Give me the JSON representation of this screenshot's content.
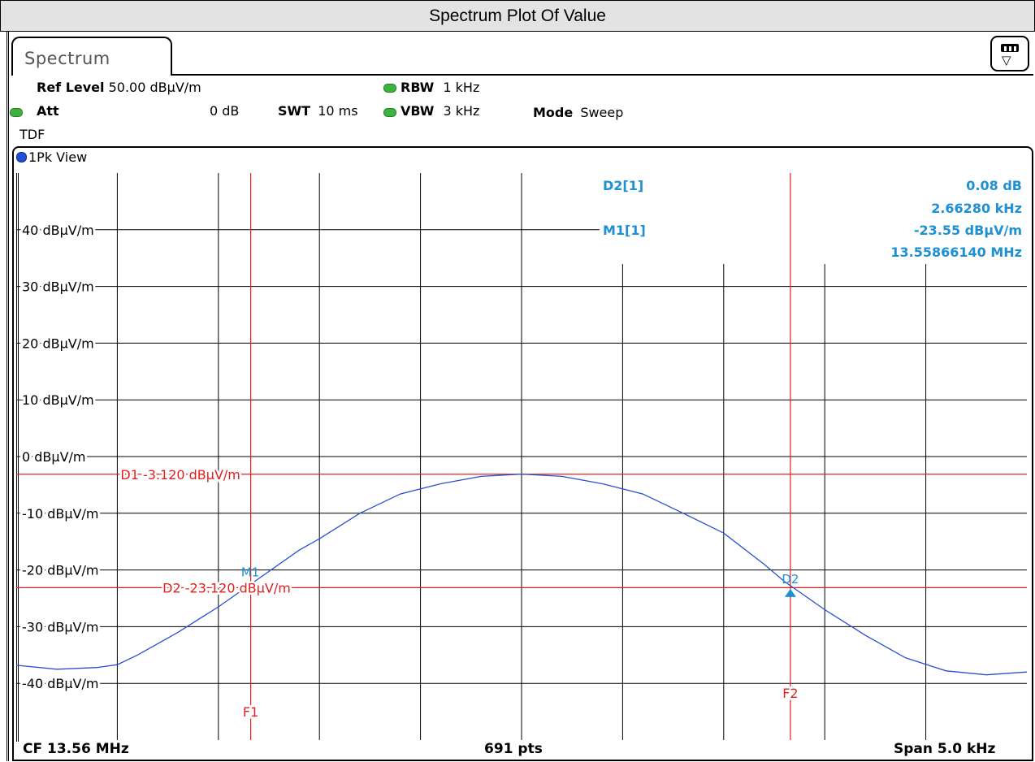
{
  "window": {
    "title": "Spectrum Plot Of Value"
  },
  "tab": {
    "label": "Spectrum"
  },
  "settings": {
    "ref_level_label": "Ref Level",
    "ref_level_value": "50.00 dBµV/m",
    "att_label": "Att",
    "att_value": "0 dB",
    "swt_label": "SWT",
    "swt_value": "10 ms",
    "rbw_label": "RBW",
    "rbw_value": "1 kHz",
    "vbw_label": "VBW",
    "vbw_value": "3 kHz",
    "mode_label": "Mode",
    "mode_value": "Sweep",
    "tdf_label": "TDF"
  },
  "view": {
    "label": "1Pk View"
  },
  "marker_table": {
    "d2_name": "D2[1]",
    "d2_level": "0.08 dB",
    "d2_freq": "2.66280 kHz",
    "m1_name": "M1[1]",
    "m1_level": "-23.55 dBµV/m",
    "m1_freq": "13.55866140 MHz"
  },
  "status": {
    "cf": "CF 13.56 MHz",
    "points": "691 pts",
    "span": "Span 5.0 kHz"
  },
  "colors": {
    "trace": "#2a4fcf",
    "marker": "#1e90d4",
    "lines": "#e02020",
    "grid": "#000000"
  },
  "chart_data": {
    "type": "line",
    "x_unit": "kHz offset from CF",
    "xlim": [
      -2.5,
      2.5
    ],
    "ylim": [
      -50,
      50
    ],
    "y_ticks": [
      40,
      30,
      20,
      10,
      0,
      -10,
      -20,
      -30,
      -40
    ],
    "y_tick_labels": [
      "40 dBµV/m",
      "30 dBµV/m",
      "20 dBµV/m",
      "10 dBµV/m",
      "0 dBµV/m",
      "-10 dBµV/m",
      "-20 dBµV/m",
      "-30 dBµV/m",
      "-40 dBµV/m"
    ],
    "grid": true,
    "series": [
      {
        "x": [
          -2.5,
          -2.3,
          -2.1,
          -2.0,
          -1.9,
          -1.7,
          -1.5,
          -1.3,
          -1.1,
          -1.0,
          -0.8,
          -0.6,
          -0.4,
          -0.2,
          0.0,
          0.2,
          0.4,
          0.6,
          0.8,
          1.0,
          1.2,
          1.3,
          1.5,
          1.7,
          1.9,
          2.1,
          2.3,
          2.5
        ],
        "y": [
          -36.8,
          -37.5,
          -37.2,
          -36.7,
          -35.0,
          -31.0,
          -26.5,
          -21.5,
          -16.5,
          -14.5,
          -10.0,
          -6.6,
          -4.8,
          -3.5,
          -3.1,
          -3.5,
          -4.8,
          -6.6,
          -10.0,
          -13.5,
          -19.0,
          -22.0,
          -27.0,
          -31.5,
          -35.5,
          -37.8,
          -38.5,
          -38.0
        ]
      }
    ],
    "display_lines": [
      {
        "label": "D1 -3.120 dBµV/m",
        "y": -3.12
      },
      {
        "label": "D2 -23.120 dBµV/m",
        "y": -23.12
      }
    ],
    "frequency_lines": [
      {
        "label": "F1",
        "x": -1.34
      },
      {
        "label": "F2",
        "x": 1.33
      }
    ],
    "markers": [
      {
        "label": "M1",
        "x": -1.33,
        "y": -23.55
      },
      {
        "label": "D2",
        "x": 1.33,
        "y": -23.47
      }
    ]
  }
}
